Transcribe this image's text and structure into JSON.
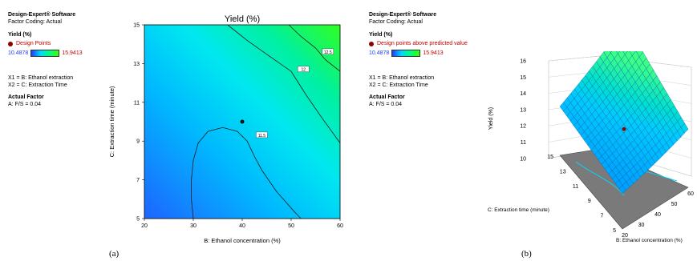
{
  "left_panel": {
    "software": "Design-Expert® Software",
    "coding": "Factor Coding: Actual",
    "response": "Yield (%)",
    "points_label": "Design Points",
    "scale_low": "10.4878",
    "scale_high": "15.9413",
    "x1": "X1 = B: Ethanol  extraction",
    "x2": "X2 = C: Extraction   Time",
    "actual_factor": "Actual  Factor",
    "factor_value": "A: F/S = 0.04"
  },
  "right_panel": {
    "software": "Design-Expert® Software",
    "coding": "Factor Coding: Actual",
    "response": "Yield (%)",
    "points_label": "Design points above predicted value",
    "scale_low": "10.4878",
    "scale_high": "15.9413",
    "x1": "X1 = B: Ethanol  extraction",
    "x2": "X2 = C: Extraction   Time",
    "actual_factor": "Actual  Factor",
    "factor_value": "A: F/S = 0.04"
  },
  "labels": {
    "a": "(a)",
    "b": "(b)"
  },
  "colors": {
    "low": "#1e3cff",
    "mid": "#00d8ff",
    "high": "#3cff00",
    "point": "#8b0000"
  },
  "chart_data": [
    {
      "type": "contour",
      "title": "Yield   (%)",
      "xlabel": "B: Ethanol concentration (%)",
      "ylabel": "C: Extraction time (minute)",
      "xlim": [
        20,
        60
      ],
      "ylim": [
        5,
        15
      ],
      "x_ticks": [
        "20",
        "30",
        "40",
        "50",
        "60"
      ],
      "y_ticks": [
        "5",
        "7",
        "9",
        "11",
        "13",
        "15"
      ],
      "contours": [
        {
          "label": "11.5",
          "points": [
            [
              30,
              5
            ],
            [
              29.6,
              6
            ],
            [
              29.6,
              7
            ],
            [
              30,
              8
            ],
            [
              31,
              8.9
            ],
            [
              33,
              9.5
            ],
            [
              36,
              9.7
            ],
            [
              39,
              9.5
            ],
            [
              41,
              9
            ],
            [
              42.5,
              8.2
            ],
            [
              44,
              7.5
            ],
            [
              47,
              6.4
            ],
            [
              50.5,
              5.4
            ],
            [
              52,
              5
            ]
          ]
        },
        {
          "label": "12",
          "points": [
            [
              37,
              15
            ],
            [
              41,
              14.2
            ],
            [
              46,
              13.3
            ],
            [
              50,
              12.6
            ],
            [
              53,
              11.4
            ],
            [
              56,
              10.3
            ],
            [
              60,
              8.9
            ]
          ]
        },
        {
          "label": "12.5",
          "points": [
            [
              49.5,
              15
            ],
            [
              52,
              14.4
            ],
            [
              55,
              13.8
            ],
            [
              57,
              13.2
            ],
            [
              60,
              12.6
            ]
          ]
        }
      ],
      "contour_label_pos": [
        [
          44,
          9.3
        ],
        [
          52.5,
          12.7
        ],
        [
          57.5,
          13.6
        ]
      ],
      "design_points": [
        [
          40,
          10
        ]
      ],
      "grid": false
    },
    {
      "type": "surface",
      "zlabel": "Yield (%)",
      "xlabel": "B: Ethanol  concentration   (%)",
      "ylabel": "C: Extraction  time (minute)",
      "x_ticks": [
        "20",
        "30",
        "40",
        "50",
        "60"
      ],
      "y_ticks": [
        "5",
        "7",
        "9",
        "11",
        "13",
        "15"
      ],
      "z_ticks": [
        "10",
        "11",
        "12",
        "13",
        "14",
        "15",
        "16"
      ],
      "xlim": [
        20,
        60
      ],
      "ylim": [
        5,
        15
      ],
      "zlim": [
        10,
        16
      ],
      "design_points": [
        [
          40,
          10,
          11.6
        ]
      ]
    }
  ]
}
